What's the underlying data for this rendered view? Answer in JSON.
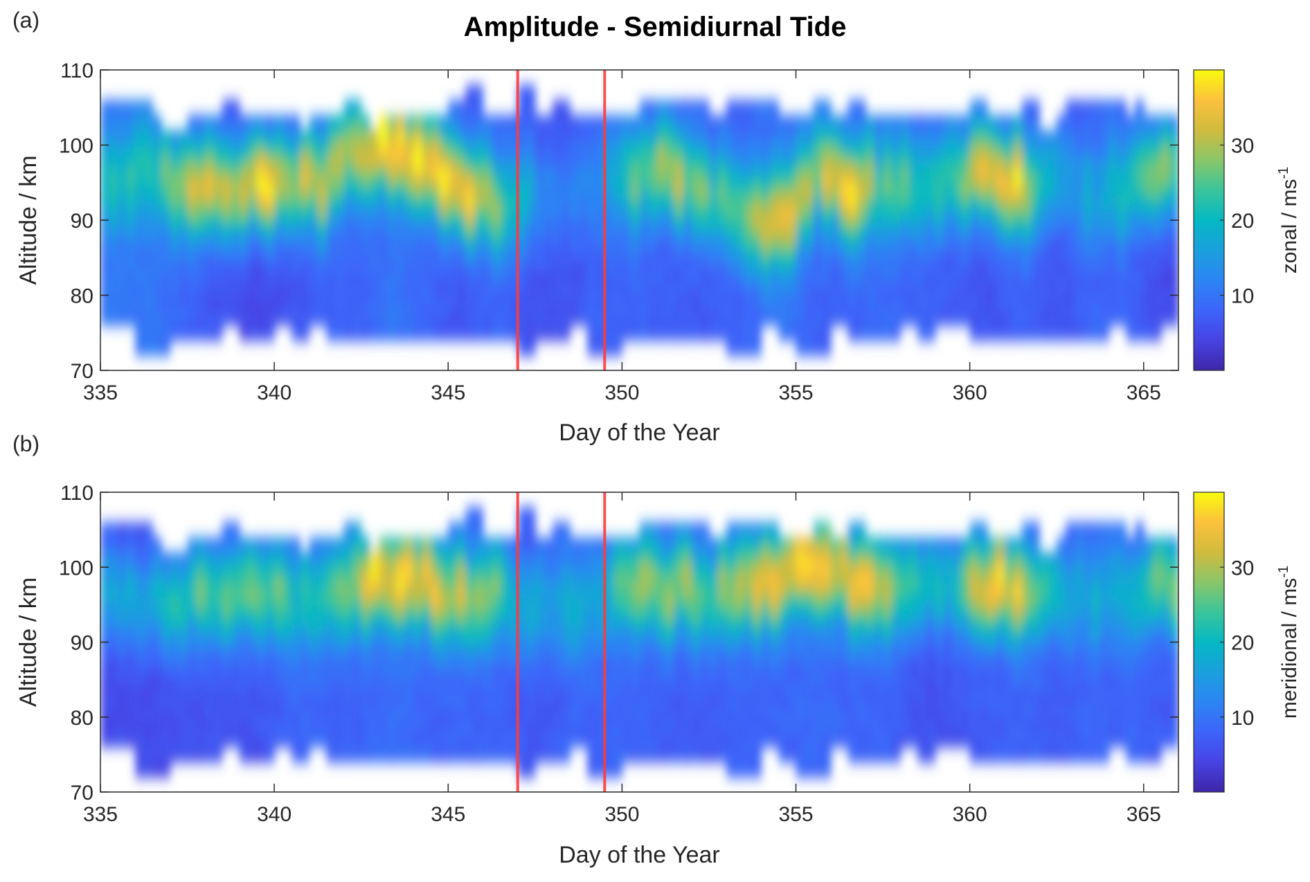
{
  "figure": {
    "title": "Amplitude - Semidiurnal Tide"
  },
  "chart_data": [
    {
      "type": "heatmap",
      "panel_label": "(a)",
      "title": "Amplitude - Semidiurnal Tide",
      "xlabel": "Day of the Year",
      "ylabel": "Altitude / km",
      "xlim": [
        335,
        366
      ],
      "ylim": [
        70,
        110
      ],
      "xticks": [
        335,
        340,
        345,
        350,
        355,
        360,
        365
      ],
      "yticks": [
        70,
        80,
        90,
        100,
        110
      ],
      "colorbar": {
        "label": "zonal / ms",
        "label_superscript": "-1",
        "ticks": [
          10,
          20,
          30
        ],
        "range": [
          0,
          40
        ],
        "colormap": "parula"
      },
      "vertical_lines": [
        {
          "x": 347.0,
          "color": "#ff3b3b"
        },
        {
          "x": 349.5,
          "color": "#ff3b3b"
        }
      ],
      "coverage": {
        "bottom_km": 74,
        "top_km": 104,
        "notes": "data mostly between 74-106 km; gaps at top/bottom vary by day"
      },
      "profile_days": [
        335.5,
        336.5,
        337.5,
        338.5,
        339.5,
        340.5,
        341.5,
        342.5,
        343.5,
        344.5,
        345.5,
        346.5,
        347.5,
        348.5,
        349.5,
        350.5,
        351.5,
        352.5,
        353.5,
        354.5,
        355.5,
        356.5,
        357.5,
        358.5,
        359.5,
        360.5,
        361.5,
        362.5,
        363.5,
        364.5,
        365.5
      ],
      "peak_altitude_km": [
        96,
        96,
        94,
        94,
        95,
        96,
        95,
        100,
        100,
        98,
        94,
        92,
        94,
        92,
        96,
        96,
        96,
        94,
        90,
        89,
        96,
        94,
        95,
        93,
        96,
        96,
        94,
        95,
        94,
        94,
        96
      ],
      "peak_amplitude": [
        22,
        24,
        34,
        35,
        36,
        32,
        30,
        34,
        39,
        36,
        35,
        30,
        14,
        12,
        14,
        26,
        30,
        24,
        30,
        34,
        30,
        36,
        24,
        26,
        20,
        36,
        36,
        16,
        18,
        22,
        28
      ],
      "low_amplitude": [
        10,
        10,
        8,
        6,
        5,
        6,
        8,
        8,
        10,
        8,
        6,
        8,
        6,
        6,
        8,
        8,
        7,
        7,
        8,
        10,
        8,
        8,
        9,
        8,
        7,
        6,
        8,
        6,
        8,
        8,
        5
      ]
    },
    {
      "type": "heatmap",
      "panel_label": "(b)",
      "xlabel": "Day of the Year",
      "ylabel": "Altitude / km",
      "xlim": [
        335,
        366
      ],
      "ylim": [
        70,
        110
      ],
      "xticks": [
        335,
        340,
        345,
        350,
        355,
        360,
        365
      ],
      "yticks": [
        70,
        80,
        90,
        100,
        110
      ],
      "colorbar": {
        "label": "meridional / ms",
        "label_superscript": "-1",
        "ticks": [
          10,
          20,
          30
        ],
        "range": [
          0,
          40
        ],
        "colormap": "parula"
      },
      "vertical_lines": [
        {
          "x": 347.0,
          "color": "#ff3b3b"
        },
        {
          "x": 349.5,
          "color": "#ff3b3b"
        }
      ],
      "coverage": {
        "bottom_km": 74,
        "top_km": 104,
        "notes": "same data coverage mask as panel (a)"
      },
      "profile_days": [
        335.5,
        336.5,
        337.5,
        338.5,
        339.5,
        340.5,
        341.5,
        342.5,
        343.5,
        344.5,
        345.5,
        346.5,
        347.5,
        348.5,
        349.5,
        350.5,
        351.5,
        352.5,
        353.5,
        354.5,
        355.5,
        356.5,
        357.5,
        358.5,
        359.5,
        360.5,
        361.5,
        362.5,
        363.5,
        364.5,
        365.5
      ],
      "peak_altitude_km": [
        96,
        96,
        96,
        96,
        97,
        96,
        96,
        98,
        99,
        98,
        96,
        96,
        94,
        94,
        96,
        97,
        97,
        96,
        98,
        99,
        100,
        99,
        97,
        98,
        98,
        98,
        96,
        96,
        96,
        96,
        98
      ],
      "peak_amplitude": [
        16,
        18,
        26,
        24,
        30,
        22,
        22,
        34,
        39,
        34,
        30,
        24,
        16,
        18,
        20,
        28,
        32,
        22,
        34,
        36,
        38,
        36,
        30,
        24,
        22,
        36,
        34,
        20,
        18,
        18,
        26
      ],
      "low_amplitude": [
        5,
        5,
        6,
        6,
        6,
        8,
        8,
        8,
        9,
        8,
        8,
        8,
        6,
        8,
        8,
        8,
        7,
        7,
        8,
        8,
        9,
        8,
        8,
        6,
        6,
        7,
        8,
        7,
        8,
        8,
        7
      ]
    }
  ]
}
